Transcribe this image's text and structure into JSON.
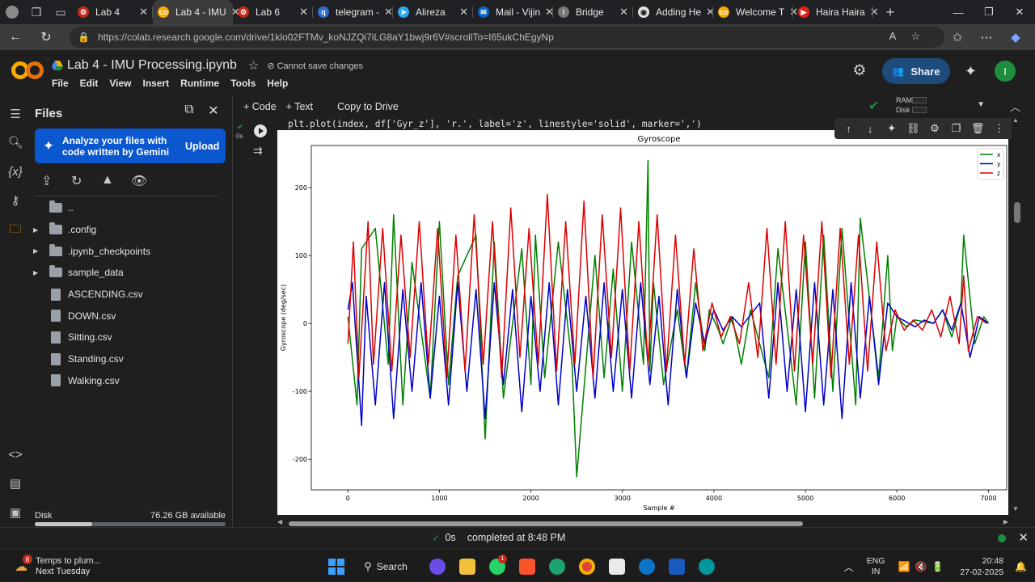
{
  "browser": {
    "tabs": [
      {
        "title": "Lab 4",
        "color": "#c42b1c",
        "fav": "⚙"
      },
      {
        "title": "Lab 4 - IMU",
        "color": "#f9ab00",
        "fav": "co",
        "active": true
      },
      {
        "title": "Lab 6",
        "color": "#c42b1c",
        "fav": "⚙"
      },
      {
        "title": "telegram -",
        "color": "#2f6fd1",
        "fav": "q"
      },
      {
        "title": "Alireza",
        "color": "#2aabee",
        "fav": "➤"
      },
      {
        "title": "Mail - Vijin",
        "color": "#0a64c8",
        "fav": "✉"
      },
      {
        "title": "Bridge",
        "color": "#777777",
        "fav": "⁞"
      },
      {
        "title": "Adding He",
        "color": "#e3e3e3",
        "fav": "◉"
      },
      {
        "title": "Welcome T",
        "color": "#f9ab00",
        "fav": "co"
      },
      {
        "title": "Haira Haira",
        "color": "#e62117",
        "fav": "▶"
      }
    ],
    "url": "https://colab.research.google.com/drive/1klo02FTMv_koNJZQi7iLG8aY1bwj9r6V#scrollTo=I65ukChEgyNp"
  },
  "colab": {
    "notebook_title": "Lab 4 - IMU Processing.ipynb",
    "save_status": "Cannot save changes",
    "menu": [
      "File",
      "Edit",
      "View",
      "Insert",
      "Runtime",
      "Tools",
      "Help"
    ],
    "share_label": "Share",
    "avatar_letter": "I"
  },
  "files_panel": {
    "title": "Files",
    "gemini_text": "Analyze your files with code written by Gemini",
    "upload_label": "Upload",
    "tree": [
      {
        "name": "..",
        "type": "folder",
        "expandable": false
      },
      {
        "name": ".config",
        "type": "folder",
        "expandable": true
      },
      {
        "name": ".ipynb_checkpoints",
        "type": "folder",
        "expandable": true
      },
      {
        "name": "sample_data",
        "type": "folder",
        "expandable": true
      },
      {
        "name": "ASCENDING.csv",
        "type": "file",
        "expandable": false
      },
      {
        "name": "DOWN.csv",
        "type": "file",
        "expandable": false
      },
      {
        "name": "Sitting.csv",
        "type": "file",
        "expandable": false
      },
      {
        "name": "Standing.csv",
        "type": "file",
        "expandable": false
      },
      {
        "name": "Walking.csv",
        "type": "file",
        "expandable": false
      }
    ],
    "disk_label": "Disk",
    "disk_available": "76.26 GB available",
    "disk_usage_fraction": 0.3
  },
  "toolbar": {
    "code_label": "+ Code",
    "text_label": "+ Text",
    "copy_label": "Copy to Drive",
    "ram_label": "RAM",
    "disk_label": "Disk"
  },
  "cell": {
    "exec_time": "0s",
    "code": "plt.plot(index, df['Gyr_z'], 'r.', label='z', linestyle='solid', marker=',')"
  },
  "chart_data": {
    "type": "line",
    "title": "Gyroscope",
    "xlabel": "Sample #",
    "ylabel": "Gyroscope (deg/sec)",
    "xlim": [
      -400,
      7200
    ],
    "ylim": [
      -245,
      262
    ],
    "xticks": [
      0,
      1000,
      2000,
      3000,
      4000,
      5000,
      6000,
      7000
    ],
    "yticks": [
      -200,
      -100,
      0,
      100,
      200
    ],
    "legend_position": "top-right",
    "series": [
      {
        "name": "x",
        "color": "#008000",
        "x": [
          0,
          100,
          150,
          300,
          440,
          500,
          600,
          700,
          900,
          1000,
          1100,
          1200,
          1400,
          1500,
          1600,
          1700,
          1900,
          2000,
          2050,
          2150,
          2300,
          2450,
          2500,
          2700,
          2800,
          2900,
          3000,
          3100,
          3230,
          3280,
          3300,
          3340,
          3450,
          3600,
          3700,
          3800,
          3900,
          3950,
          4050,
          4100,
          4200,
          4300,
          4400,
          4600,
          4700,
          4900,
          5000,
          5100,
          5200,
          5300,
          5400,
          5550,
          5600,
          5800,
          5900,
          5950,
          6000,
          6100,
          6200,
          6400,
          6500,
          6600,
          6700,
          6730,
          6850,
          6950,
          7000
        ],
        "y": [
          10,
          -120,
          110,
          140,
          -60,
          160,
          -120,
          90,
          -110,
          150,
          -90,
          70,
          130,
          -170,
          120,
          -110,
          110,
          -90,
          130,
          -80,
          120,
          -60,
          -226,
          100,
          -80,
          80,
          -100,
          120,
          -60,
          240,
          -70,
          60,
          -90,
          20,
          -80,
          60,
          -40,
          20,
          -10,
          -30,
          10,
          -60,
          20,
          -80,
          110,
          -120,
          120,
          -110,
          130,
          -100,
          140,
          -120,
          155,
          -80,
          100,
          -40,
          10,
          -5,
          5,
          0,
          20,
          -20,
          30,
          130,
          -30,
          10,
          0
        ]
      },
      {
        "name": "y",
        "color": "#0000cc",
        "x": [
          0,
          50,
          150,
          200,
          300,
          400,
          500,
          600,
          700,
          800,
          900,
          1000,
          1100,
          1200,
          1300,
          1400,
          1500,
          1600,
          1700,
          1800,
          1900,
          2000,
          2100,
          2200,
          2300,
          2400,
          2500,
          2600,
          2700,
          2800,
          2900,
          3000,
          3100,
          3200,
          3300,
          3400,
          3500,
          3600,
          3700,
          3800,
          3900,
          4000,
          4100,
          4200,
          4300,
          4500,
          4600,
          4700,
          4800,
          4900,
          5000,
          5100,
          5200,
          5300,
          5400,
          5500,
          5600,
          5700,
          5800,
          5900,
          6000,
          6200,
          6300,
          6400,
          6500,
          6600,
          6700,
          6800,
          6900,
          7000
        ],
        "y": [
          20,
          60,
          -150,
          40,
          -120,
          60,
          -140,
          50,
          -100,
          60,
          -110,
          40,
          -120,
          60,
          -100,
          50,
          -140,
          60,
          -90,
          50,
          -130,
          40,
          -100,
          60,
          -120,
          50,
          -100,
          40,
          -110,
          60,
          -100,
          50,
          -110,
          60,
          -90,
          40,
          -120,
          50,
          -80,
          30,
          -30,
          20,
          -10,
          10,
          -5,
          30,
          -110,
          60,
          -100,
          50,
          -130,
          60,
          -120,
          50,
          -140,
          60,
          -110,
          40,
          -90,
          30,
          10,
          -5,
          5,
          0,
          20,
          -10,
          30,
          -50,
          10,
          0
        ]
      },
      {
        "name": "z",
        "color": "#dd0000",
        "x": [
          0,
          60,
          120,
          220,
          280,
          380,
          480,
          580,
          680,
          780,
          880,
          980,
          1080,
          1180,
          1280,
          1380,
          1480,
          1580,
          1680,
          1780,
          1880,
          1980,
          2080,
          2180,
          2280,
          2380,
          2480,
          2580,
          2680,
          2780,
          2880,
          2980,
          3080,
          3180,
          3280,
          3380,
          3480,
          3580,
          3680,
          3780,
          3880,
          3980,
          4080,
          4180,
          4280,
          4380,
          4480,
          4580,
          4680,
          4780,
          4880,
          4980,
          5080,
          5180,
          5280,
          5380,
          5480,
          5580,
          5680,
          5780,
          5880,
          5980,
          6080,
          6180,
          6280,
          6380,
          6480,
          6580,
          6680,
          6730,
          6780,
          6880,
          6980
        ],
        "y": [
          -30,
          120,
          -80,
          150,
          -60,
          140,
          -70,
          130,
          -50,
          150,
          -60,
          140,
          -80,
          130,
          -70,
          160,
          -60,
          150,
          -80,
          170,
          -50,
          140,
          -60,
          190,
          -70,
          150,
          -60,
          180,
          -80,
          160,
          -50,
          170,
          -70,
          150,
          -60,
          160,
          -70,
          130,
          -60,
          110,
          -40,
          30,
          -20,
          10,
          -30,
          60,
          -50,
          140,
          -60,
          150,
          -70,
          130,
          -60,
          150,
          -80,
          140,
          -60,
          130,
          -70,
          120,
          -40,
          20,
          -10,
          5,
          -10,
          20,
          -20,
          40,
          -30,
          70,
          -40,
          10,
          0
        ]
      }
    ]
  }
}
